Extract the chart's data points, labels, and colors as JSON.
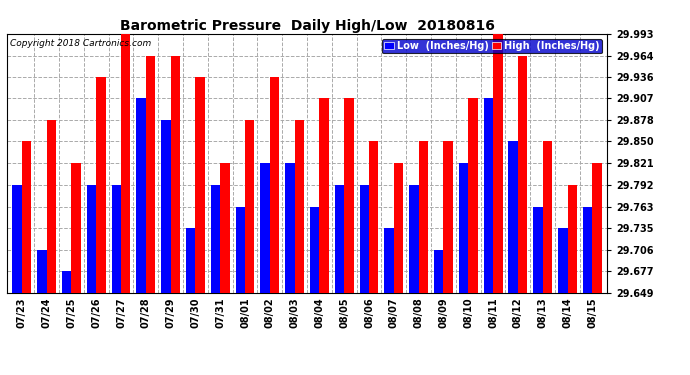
{
  "title": "Barometric Pressure  Daily High/Low  20180816",
  "copyright": "Copyright 2018 Cartronics.com",
  "y_ticks": [
    29.649,
    29.677,
    29.706,
    29.735,
    29.763,
    29.792,
    29.821,
    29.85,
    29.878,
    29.907,
    29.936,
    29.964,
    29.993
  ],
  "ylim": [
    29.649,
    29.993
  ],
  "dates": [
    "07/23",
    "07/24",
    "07/25",
    "07/26",
    "07/27",
    "07/28",
    "07/29",
    "07/30",
    "07/31",
    "08/01",
    "08/02",
    "08/03",
    "08/04",
    "08/05",
    "08/06",
    "08/07",
    "08/08",
    "08/09",
    "08/10",
    "08/11",
    "08/12",
    "08/13",
    "08/14",
    "08/15"
  ],
  "low_values": [
    29.792,
    29.706,
    29.677,
    29.792,
    29.792,
    29.907,
    29.878,
    29.735,
    29.792,
    29.763,
    29.821,
    29.821,
    29.763,
    29.792,
    29.792,
    29.735,
    29.792,
    29.706,
    29.821,
    29.907,
    29.85,
    29.763,
    29.735,
    29.763
  ],
  "high_values": [
    29.85,
    29.878,
    29.821,
    29.936,
    29.993,
    29.964,
    29.964,
    29.936,
    29.821,
    29.878,
    29.936,
    29.878,
    29.907,
    29.907,
    29.85,
    29.821,
    29.85,
    29.85,
    29.907,
    29.993,
    29.964,
    29.85,
    29.792,
    29.821
  ],
  "bar_width": 0.38,
  "low_color": "#0000ff",
  "high_color": "#ff0000",
  "bg_color": "#ffffff",
  "grid_color": "#aaaaaa",
  "title_fontsize": 10,
  "copyright_fontsize": 6.5,
  "tick_fontsize": 7,
  "legend_low_label": "Low  (Inches/Hg)",
  "legend_high_label": "High  (Inches/Hg)"
}
